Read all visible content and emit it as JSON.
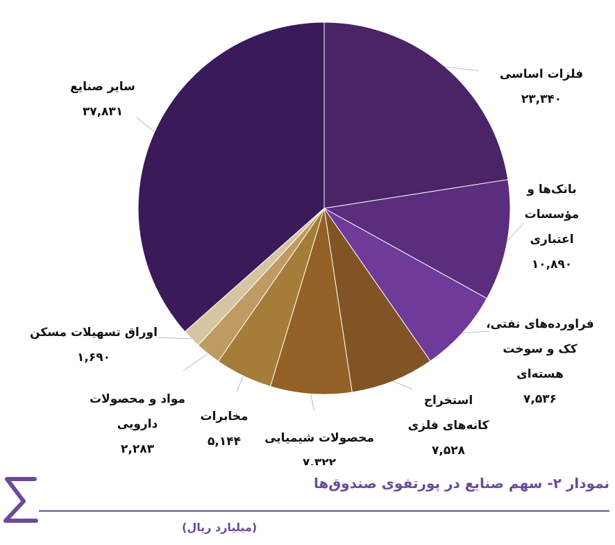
{
  "chart_data": {
    "type": "pie",
    "title": "نمودار ۲- سهم صنایع در پورتفوی صندوق‌ها",
    "unit": "(میلیارد ریال)",
    "slices": [
      {
        "label": [
          "فلزات اساسی"
        ],
        "value": 23340,
        "value_text": "۲۳,۳۴۰",
        "color": "#4a2466"
      },
      {
        "label": [
          "بانک‌ها و",
          "مؤسسات",
          "اعتباری"
        ],
        "value": 10890,
        "value_text": "۱۰,۸۹۰",
        "color": "#5b2d7d"
      },
      {
        "label": [
          "فراورده‌های نفتی،",
          "کک و سوخت",
          "هسته‌ای"
        ],
        "value": 7536,
        "value_text": "۷,۵۳۶",
        "color": "#6f3a99"
      },
      {
        "label": [
          "استخراج",
          "کانه‌های فلزی"
        ],
        "value": 7528,
        "value_text": "۷,۵۲۸",
        "color": "#825425"
      },
      {
        "label": [
          "محصولات شیمیایی"
        ],
        "value": 7322,
        "value_text": "۷,۳۲۲",
        "color": "#936125"
      },
      {
        "label": [
          "مخابرات"
        ],
        "value": 5144,
        "value_text": "۵,۱۴۴",
        "color": "#a67d38"
      },
      {
        "label": [
          "مواد و محصولات",
          "دارویی"
        ],
        "value": 2283,
        "value_text": "۲,۲۸۳",
        "color": "#c09a63"
      },
      {
        "label": [
          "اوراق تسهیلات مسکن"
        ],
        "value": 1690,
        "value_text": "۱,۶۹۰",
        "color": "#d6c5a3"
      },
      {
        "label": [
          "سایر صنایع"
        ],
        "value": 37831,
        "value_text": "۳۷,۸۳۱",
        "color": "#3a1a58"
      }
    ]
  },
  "footer": {
    "logo_icon": "sigma-icon",
    "accent_color": "#6b4a9a"
  }
}
